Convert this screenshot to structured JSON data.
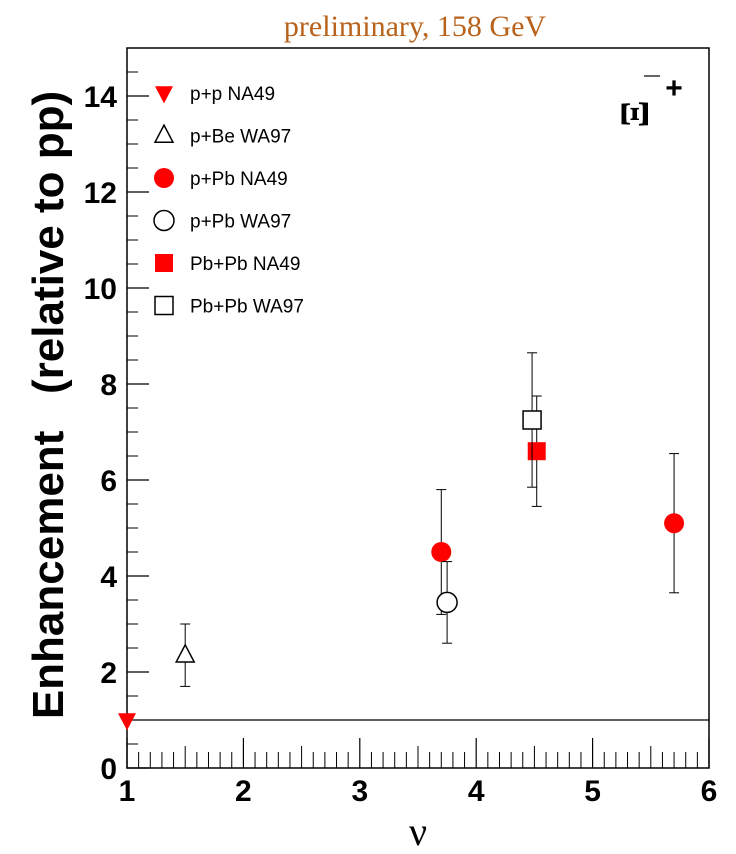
{
  "chart_data": {
    "type": "scatter",
    "title": "preliminary, 158 GeV",
    "xlabel": "ν",
    "ylabel": "Enhancement   (relative to pp)",
    "xlim": [
      1,
      6
    ],
    "ylim": [
      0,
      15
    ],
    "x_ticks": [
      1,
      2,
      3,
      4,
      5,
      6
    ],
    "y_ticks": [
      0,
      2,
      4,
      6,
      8,
      10,
      12,
      14
    ],
    "reference_line": 1,
    "particle_label": {
      "symbol": "Ξ",
      "charge": "+",
      "antiparticle": true
    },
    "legend_position": "top-left",
    "colors": {
      "na49": "#ff0000",
      "wa97": "#000000",
      "title": "#b8621b"
    },
    "series": [
      {
        "name": "p+p  NA49",
        "marker": "triangle-down",
        "filled": true,
        "color": "#ff0000",
        "points": [
          {
            "x": 1.0,
            "y": 1.0
          }
        ]
      },
      {
        "name": "p+Be  WA97",
        "marker": "triangle-up",
        "filled": false,
        "color": "#000000",
        "points": [
          {
            "x": 1.5,
            "y": 2.35,
            "yerr_low": 0.65,
            "yerr_high": 0.65
          }
        ]
      },
      {
        "name": "p+Pb  NA49",
        "marker": "circle",
        "filled": true,
        "color": "#ff0000",
        "points": [
          {
            "x": 3.7,
            "y": 4.5,
            "yerr_low": 1.3,
            "yerr_high": 1.3
          },
          {
            "x": 5.7,
            "y": 5.1,
            "yerr_low": 1.45,
            "yerr_high": 1.45
          }
        ]
      },
      {
        "name": "p+Pb  WA97",
        "marker": "circle",
        "filled": false,
        "color": "#000000",
        "points": [
          {
            "x": 3.75,
            "y": 3.45,
            "yerr_low": 0.85,
            "yerr_high": 0.85
          }
        ]
      },
      {
        "name": "Pb+Pb NA49",
        "marker": "square",
        "filled": true,
        "color": "#ff0000",
        "points": [
          {
            "x": 4.52,
            "y": 6.6,
            "yerr_low": 1.15,
            "yerr_high": 1.15
          }
        ]
      },
      {
        "name": "Pb+Pb WA97",
        "marker": "square",
        "filled": false,
        "color": "#000000",
        "points": [
          {
            "x": 4.48,
            "y": 7.25,
            "yerr_low": 1.4,
            "yerr_high": 1.4
          }
        ]
      }
    ]
  }
}
